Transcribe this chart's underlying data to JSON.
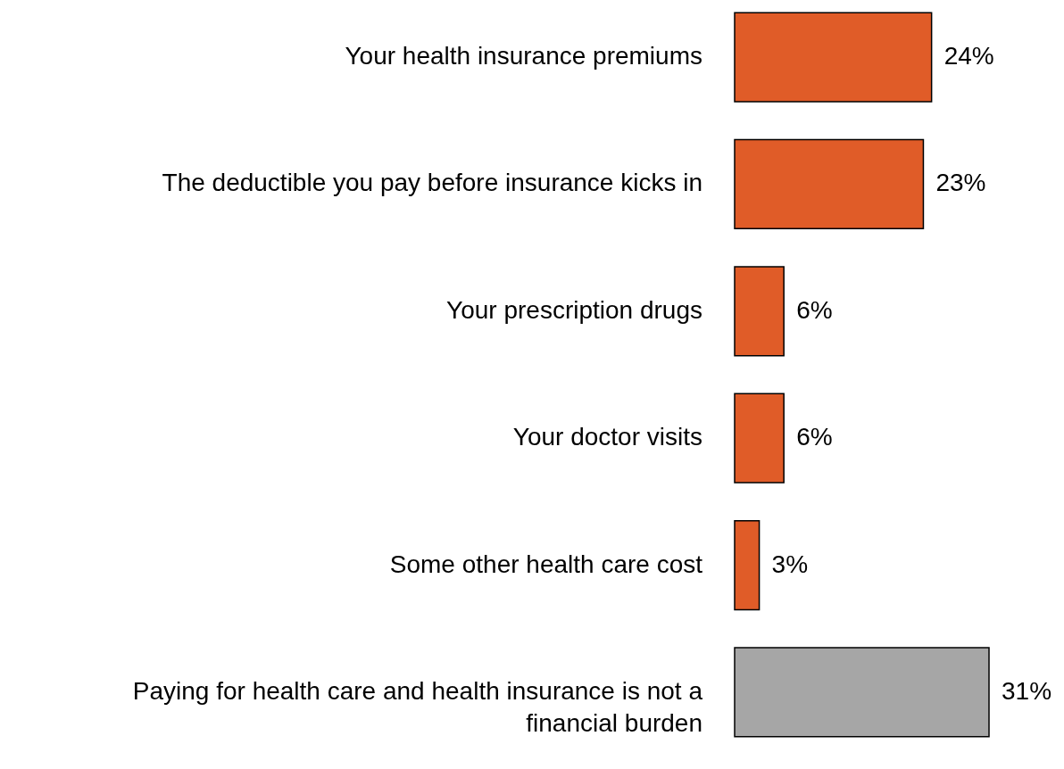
{
  "chart_data": {
    "type": "bar",
    "orientation": "horizontal",
    "categories": [
      "Your health insurance premiums",
      "The deductible you pay before insurance kicks in",
      "Your prescription drugs",
      "Your doctor visits",
      "Some other health care cost",
      "Paying for health care and health insurance is not a financial burden"
    ],
    "values": [
      24,
      23,
      6,
      6,
      3,
      31
    ],
    "colors": [
      "#e05c28",
      "#e05c28",
      "#e05c28",
      "#e05c28",
      "#e05c28",
      "#a6a6a6"
    ],
    "value_labels": [
      "24%",
      "23%",
      "6%",
      "6%",
      "3%",
      "31%"
    ]
  }
}
